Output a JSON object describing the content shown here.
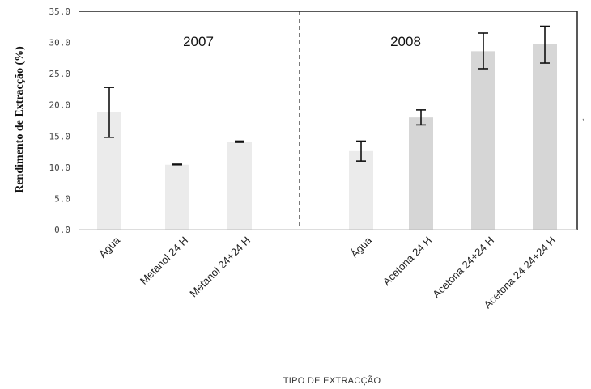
{
  "chart_data": {
    "type": "bar",
    "title": "",
    "xlabel": "TIPO DE EXTRACÇÃO",
    "ylabel": "Rendimento de Extracção (%)",
    "ylim": [
      0,
      35
    ],
    "yticks": [
      "0.0",
      "5.0",
      "10.0",
      "15.0",
      "20.0",
      "25.0",
      "30.0",
      "35.0"
    ],
    "groups": [
      {
        "label": "2007",
        "categories": [
          "Água",
          "Metanol 24 H",
          "Metanol 24+24 H"
        ]
      },
      {
        "label": "2008",
        "categories": [
          "Água",
          "Acetona 24 H",
          "Acetona 24+24 H",
          "Acetona 24 24+24 H"
        ]
      }
    ],
    "categories": [
      "Água",
      "Metanol 24 H",
      "Metanol 24+24 H",
      "Água",
      "Acetona 24 H",
      "Acetona 24+24 H",
      "Acetona 24 24+24 H"
    ],
    "values": [
      18.8,
      10.4,
      14.1,
      12.6,
      18.0,
      28.6,
      29.7
    ],
    "error_low": [
      14.8,
      10.4,
      14.0,
      11.0,
      16.8,
      25.8,
      26.7
    ],
    "error_high": [
      22.8,
      10.5,
      14.2,
      14.2,
      19.2,
      31.5,
      32.6
    ],
    "bar_color": "#d2d2d2",
    "grid": false,
    "legend": "none",
    "side_mark": "‚"
  }
}
